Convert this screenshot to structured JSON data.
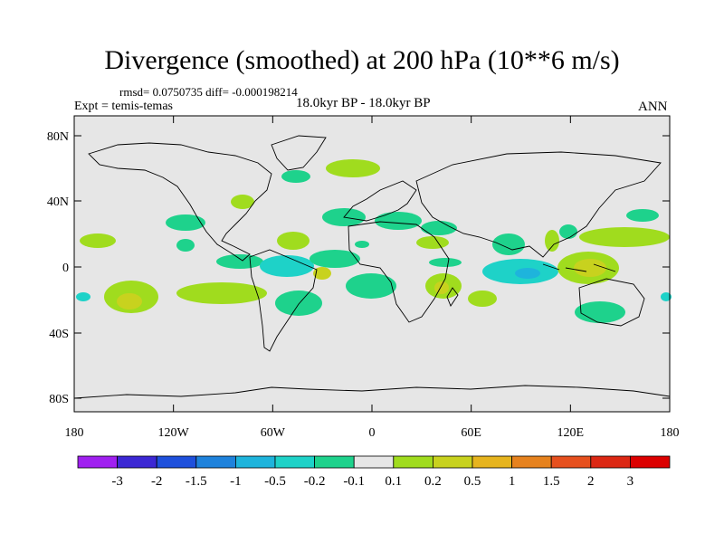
{
  "title": "Divergence (smoothed) at 200 hPa (10**6 m/s)",
  "stats": "rmsd= 0.0750735 diff= -0.000198214",
  "experiment": "Expt = temis-temas",
  "period": "18.0kyr BP - 18.0kyr BP",
  "season": "ANN",
  "y_ticks": [
    "80N",
    "40N",
    "0",
    "40S",
    "80S"
  ],
  "x_ticks": [
    "180",
    "120W",
    "60W",
    "0",
    "60E",
    "120E",
    "180"
  ],
  "colorbar": {
    "labels": [
      "-3",
      "-2",
      "-1.5",
      "-1",
      "-0.5",
      "-0.2",
      "-0.1",
      "0.1",
      "0.2",
      "0.5",
      "1",
      "1.5",
      "2",
      "3"
    ],
    "colors": [
      "#a020f0",
      "#3c28d4",
      "#1e50dc",
      "#1e82dc",
      "#1eb4dc",
      "#1ed2c8",
      "#1ed28c",
      "#e6e6e6",
      "#a0dc1e",
      "#c8d21e",
      "#e6b41e",
      "#e6821e",
      "#e6501e",
      "#dc2814",
      "#dc0000"
    ]
  },
  "colors": {
    "map_background": "#e6e6e6",
    "coastline": "#000000"
  }
}
